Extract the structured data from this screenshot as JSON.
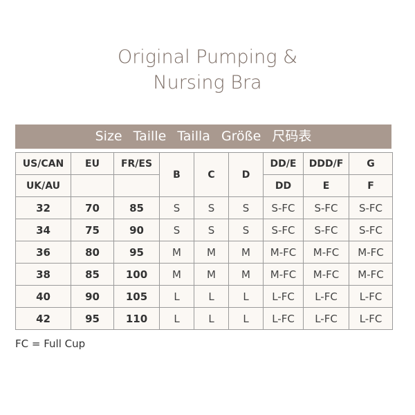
{
  "title": {
    "line1": "Original Pumping &",
    "line2": "Nursing Bra"
  },
  "band": {
    "text": "Size Taille Tailla Größe 尺码表"
  },
  "header": {
    "row1": [
      "US/CAN",
      "EU",
      "FR/ES",
      "B",
      "C",
      "D",
      "DD/E",
      "DDD/F",
      "G"
    ],
    "row2": [
      "UK/AU",
      "",
      "",
      "DD",
      "E",
      "F"
    ]
  },
  "rows": [
    [
      "32",
      "70",
      "85",
      "S",
      "S",
      "S",
      "S-FC",
      "S-FC",
      "S-FC"
    ],
    [
      "34",
      "75",
      "90",
      "S",
      "S",
      "S",
      "S-FC",
      "S-FC",
      "S-FC"
    ],
    [
      "36",
      "80",
      "95",
      "M",
      "M",
      "M",
      "M-FC",
      "M-FC",
      "M-FC"
    ],
    [
      "38",
      "85",
      "100",
      "M",
      "M",
      "M",
      "M-FC",
      "M-FC",
      "M-FC"
    ],
    [
      "40",
      "90",
      "105",
      "L",
      "L",
      "L",
      "L-FC",
      "L-FC",
      "L-FC"
    ],
    [
      "42",
      "95",
      "110",
      "L",
      "L",
      "L",
      "L-FC",
      "L-FC",
      "L-FC"
    ]
  ],
  "note": "FC = Full Cup",
  "colors": {
    "band": "#a9998f",
    "title": "#7d6e66",
    "cell": "#fbf8f4"
  }
}
